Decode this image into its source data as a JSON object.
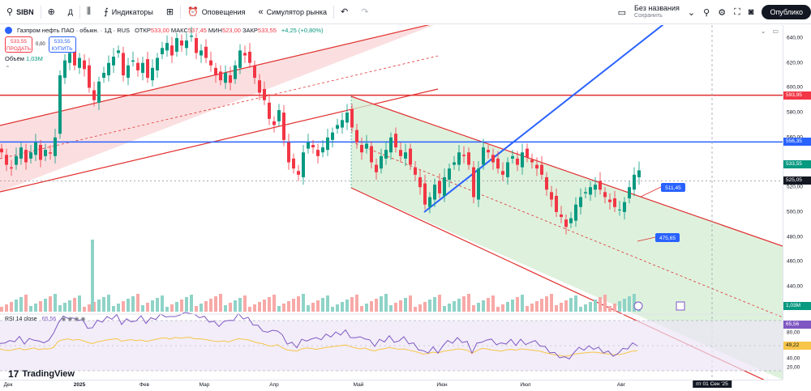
{
  "toolbar": {
    "symbol": "SIBN",
    "add_symbol": "⊕",
    "compare": "Д",
    "indicators_label": "Индикаторы",
    "alerts_label": "Оповещения",
    "replay_label": "Симулятор рынка",
    "save_title": "Без названия",
    "save_subtitle": "Сохранить",
    "publish_label": "Опублико"
  },
  "legend": {
    "name": "Газпром нефть ПАО · обыкн. · 1Д · RUS",
    "open_label": "ОТКР",
    "open": "533,00",
    "high_label": "МАКС",
    "high": "537,45",
    "low_label": "МИН",
    "low": "523,00",
    "close_label": "ЗАКР",
    "close": "533,55",
    "change": "+4,25 (+0,80%)"
  },
  "trade": {
    "sell_price": "533,55",
    "sell_label": "ПРОДАТЬ",
    "spread": "0,00",
    "buy_price": "533,55",
    "buy_label": "КУПИТЬ"
  },
  "volume": {
    "label": "Объём",
    "value": "1,03M"
  },
  "rsi": {
    "label": "RSI 14 close",
    "value": "65,56"
  },
  "logo": "TradingView",
  "annotations": {
    "label1": "511,45",
    "label2": "475,65"
  },
  "price_axis": {
    "ticks": [
      "640,00",
      "620,00",
      "600,00",
      "580,00",
      "560,00",
      "540,00",
      "520,00",
      "500,00",
      "480,00",
      "460,00",
      "440,00"
    ],
    "tags": [
      {
        "text": "593,95",
        "color": "#f23645"
      },
      {
        "text": "556,35",
        "color": "#2962ff"
      },
      {
        "text": "533,55",
        "color": "#089981"
      },
      {
        "text": "525,05",
        "color": "#131722"
      },
      {
        "text": "1,03M",
        "color": "#089981"
      },
      {
        "text": "65,56",
        "color": "#7e57c2"
      },
      {
        "text": "49,22",
        "color": "#f7c548"
      }
    ],
    "rsi_ticks": [
      "80,00",
      "40,00",
      "20,00"
    ]
  },
  "time_axis": {
    "ticks": [
      "Дек",
      "2025",
      "Фев",
      "Мар",
      "Апр",
      "Май",
      "Июн",
      "Июл",
      "Авг"
    ],
    "cursor_date": "пт 01 Сен '25"
  },
  "colors": {
    "up": "#089981",
    "down": "#f23645",
    "resistance": "#e0302f",
    "support": "#2962ff",
    "rsi": "#7e57c2"
  }
}
